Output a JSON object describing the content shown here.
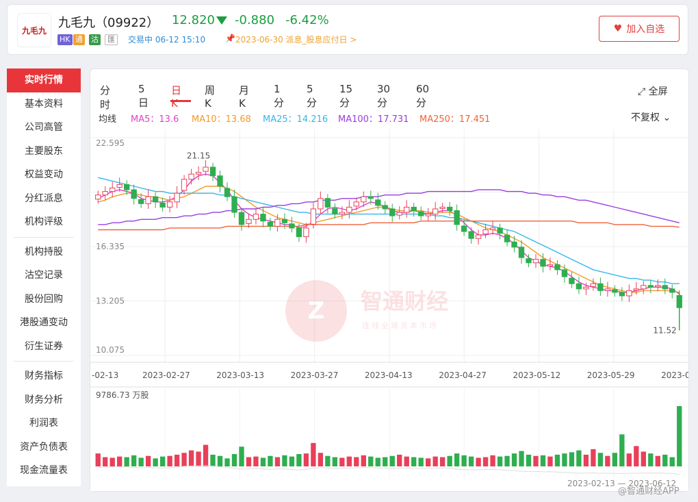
{
  "header": {
    "logo_text": "九毛九",
    "name": "九毛九（09922）",
    "price": "12.820",
    "change": "-0.880",
    "change_pct": "-6.42%",
    "tags": [
      "HK",
      "通",
      "沽",
      "匯"
    ],
    "trade_status": "交易中 06-12 15:10",
    "dividend_notice": "2023-06-30 派息_股息应付日 >",
    "favorite_label": "加入自选"
  },
  "sidebar": {
    "items": [
      "实时行情",
      "基本资料",
      "公司高管",
      "主要股东",
      "权益变动",
      "分红派息",
      "机构评级",
      "机构持股",
      "沽空记录",
      "股份回购",
      "港股通变动",
      "衍生证券",
      "财务指标",
      "财务分析",
      "利润表",
      "资产负债表",
      "现金流量表"
    ]
  },
  "chart": {
    "periods": [
      "分时",
      "5日",
      "日K",
      "周K",
      "月K",
      "1分",
      "5分",
      "15分",
      "30分",
      "60分"
    ],
    "active_period": "日K",
    "fullscreen_label": "全屏",
    "adjust_label": "不复权",
    "ma_label": "均线",
    "ma": [
      {
        "label": "MA5：13.6",
        "color": "#e040c8"
      },
      {
        "label": "MA10：13.68",
        "color": "#f39a2a"
      },
      {
        "label": "MA25：14.216",
        "color": "#35b6e8"
      },
      {
        "label": "MA100：17.731",
        "color": "#9a3de0"
      },
      {
        "label": "MA250：17.451",
        "color": "#f0623a"
      }
    ],
    "watermark": "智通财经",
    "watermark_sub": "连线全球资本市场",
    "volume_label": "9786.73 万股",
    "range_label": "2023-02-13 — 2023-06-12",
    "footer_brand": "@智通财经APP"
  },
  "chart_data": {
    "type": "candlestick",
    "y_ticks": [
      "22.595",
      "19.465",
      "16.335",
      "13.205",
      "10.075"
    ],
    "y_labels_shown": [
      "22.595",
      "16.335",
      "13.205",
      "10.075"
    ],
    "ylim": [
      10.075,
      22.595
    ],
    "x_labels": [
      "-02-13",
      "2023-02-27",
      "2023-03-13",
      "2023-03-27",
      "2023-04-13",
      "2023-04-27",
      "2023-05-12",
      "2023-05-29",
      "2023-0"
    ],
    "high_annotation": "21.15",
    "low_annotation": "11.52",
    "closes": [
      19.3,
      19.5,
      19.7,
      19.9,
      19.6,
      19.1,
      18.8,
      19.2,
      18.9,
      18.6,
      18.9,
      19.4,
      20.2,
      20.5,
      20.6,
      20.9,
      20.4,
      19.8,
      19.2,
      18.3,
      17.6,
      17.9,
      18.2,
      17.8,
      17.5,
      17.9,
      17.7,
      17.4,
      16.9,
      17.4,
      18.5,
      19.1,
      18.6,
      18.2,
      18.3,
      18.6,
      18.9,
      19.2,
      19.1,
      18.7,
      18.5,
      18.1,
      18.3,
      18.6,
      18.4,
      18.1,
      18.2,
      18.5,
      18.6,
      18.4,
      17.6,
      17.2,
      16.8,
      17.0,
      17.3,
      17.4,
      17.1,
      16.6,
      16.3,
      15.7,
      15.4,
      15.6,
      15.2,
      15.3,
      15.0,
      14.6,
      14.2,
      13.9,
      14.0,
      14.2,
      13.8,
      13.9,
      13.7,
      13.5,
      13.8,
      13.9,
      14.1,
      14.0,
      14.1,
      13.9,
      13.7,
      12.82
    ],
    "ma5": [
      19.1,
      19.3,
      19.5,
      19.6,
      19.5,
      19.4,
      19.1,
      19.0,
      18.9,
      18.9,
      19.0,
      19.2,
      19.6,
      20.1,
      20.4,
      20.5,
      20.4,
      20.0,
      19.6,
      19.0,
      18.5,
      18.2,
      18.0,
      17.9,
      17.8,
      17.7,
      17.6,
      17.6,
      17.4,
      17.5,
      17.8,
      18.2,
      18.5,
      18.6,
      18.5,
      18.4,
      18.5,
      18.7,
      18.9,
      18.8,
      18.6,
      18.4,
      18.3,
      18.3,
      18.4,
      18.3,
      18.2,
      18.3,
      18.4,
      18.4,
      18.1,
      17.7,
      17.3,
      17.0,
      17.0,
      17.1,
      17.0,
      16.8,
      16.5,
      16.1,
      15.7,
      15.5,
      15.3,
      15.2,
      15.1,
      14.9,
      14.6,
      14.3,
      14.1,
      14.0,
      13.9,
      13.8,
      13.8,
      13.7,
      13.7,
      13.8,
      13.9,
      14.0,
      14.0,
      14.0,
      13.9,
      13.6
    ],
    "ma10": [
      18.9,
      19.0,
      19.2,
      19.3,
      19.4,
      19.4,
      19.3,
      19.2,
      19.2,
      19.1,
      19.0,
      19.1,
      19.2,
      19.4,
      19.6,
      19.8,
      19.8,
      19.8,
      19.7,
      19.5,
      19.2,
      18.9,
      18.6,
      18.4,
      18.2,
      18.0,
      17.9,
      17.8,
      17.7,
      17.6,
      17.7,
      17.8,
      17.9,
      18.0,
      18.1,
      18.2,
      18.3,
      18.4,
      18.5,
      18.6,
      18.6,
      18.5,
      18.4,
      18.4,
      18.4,
      18.4,
      18.3,
      18.3,
      18.3,
      18.3,
      18.2,
      18.0,
      17.8,
      17.6,
      17.4,
      17.3,
      17.2,
      17.0,
      16.8,
      16.6,
      16.3,
      16.0,
      15.7,
      15.5,
      15.3,
      15.1,
      14.9,
      14.7,
      14.5,
      14.3,
      14.1,
      14.0,
      13.9,
      13.8,
      13.7,
      13.7,
      13.8,
      13.8,
      13.8,
      13.8,
      13.8,
      13.7
    ],
    "ma25": [
      20.3,
      20.2,
      20.1,
      20.0,
      19.9,
      19.8,
      19.7,
      19.6,
      19.5,
      19.5,
      19.4,
      19.4,
      19.4,
      19.4,
      19.4,
      19.4,
      19.4,
      19.3,
      19.3,
      19.2,
      19.1,
      19.0,
      18.9,
      18.8,
      18.7,
      18.6,
      18.5,
      18.4,
      18.3,
      18.3,
      18.2,
      18.2,
      18.2,
      18.2,
      18.2,
      18.2,
      18.2,
      18.2,
      18.2,
      18.2,
      18.2,
      18.2,
      18.2,
      18.2,
      18.2,
      18.2,
      18.2,
      18.1,
      18.1,
      18.0,
      18.0,
      17.9,
      17.8,
      17.7,
      17.6,
      17.5,
      17.4,
      17.3,
      17.2,
      17.0,
      16.8,
      16.6,
      16.4,
      16.2,
      16.0,
      15.8,
      15.6,
      15.4,
      15.2,
      15.0,
      14.9,
      14.8,
      14.7,
      14.6,
      14.5,
      14.5,
      14.4,
      14.4,
      14.3,
      14.3,
      14.2,
      14.2
    ],
    "ma100": [
      17.6,
      17.6,
      17.7,
      17.7,
      17.8,
      17.8,
      17.9,
      17.9,
      17.9,
      18.0,
      18.0,
      18.0,
      18.1,
      18.1,
      18.2,
      18.2,
      18.3,
      18.3,
      18.4,
      18.4,
      18.5,
      18.5,
      18.5,
      18.6,
      18.6,
      18.7,
      18.7,
      18.8,
      18.8,
      18.9,
      18.9,
      19.0,
      19.0,
      19.0,
      19.1,
      19.1,
      19.1,
      19.2,
      19.2,
      19.2,
      19.3,
      19.3,
      19.3,
      19.4,
      19.4,
      19.4,
      19.5,
      19.5,
      19.5,
      19.5,
      19.5,
      19.5,
      19.5,
      19.6,
      19.6,
      19.6,
      19.6,
      19.5,
      19.5,
      19.5,
      19.4,
      19.4,
      19.3,
      19.3,
      19.2,
      19.2,
      19.1,
      19.0,
      19.0,
      18.9,
      18.8,
      18.7,
      18.6,
      18.5,
      18.4,
      18.3,
      18.2,
      18.1,
      18.0,
      17.9,
      17.8,
      17.7
    ],
    "ma250": [
      17.3,
      17.3,
      17.3,
      17.3,
      17.3,
      17.3,
      17.3,
      17.3,
      17.3,
      17.3,
      17.4,
      17.4,
      17.4,
      17.4,
      17.4,
      17.4,
      17.4,
      17.4,
      17.5,
      17.5,
      17.5,
      17.5,
      17.5,
      17.5,
      17.5,
      17.5,
      17.5,
      17.5,
      17.5,
      17.6,
      17.6,
      17.6,
      17.6,
      17.6,
      17.6,
      17.6,
      17.6,
      17.6,
      17.7,
      17.7,
      17.7,
      17.7,
      17.7,
      17.7,
      17.7,
      17.8,
      17.8,
      17.8,
      17.8,
      17.8,
      17.8,
      17.8,
      17.8,
      17.8,
      17.8,
      17.8,
      17.8,
      17.8,
      17.8,
      17.8,
      17.8,
      17.8,
      17.8,
      17.8,
      17.8,
      17.8,
      17.8,
      17.7,
      17.7,
      17.7,
      17.7,
      17.7,
      17.6,
      17.6,
      17.6,
      17.6,
      17.6,
      17.5,
      17.5,
      17.5,
      17.5,
      17.45
    ],
    "volume_max": 9786.73,
    "volume": [
      2100,
      1500,
      1400,
      1600,
      1500,
      1800,
      1400,
      1700,
      1300,
      1600,
      1700,
      1900,
      2200,
      2600,
      2400,
      3500,
      1900,
      1700,
      1300,
      2000,
      3200,
      1500,
      1600,
      1400,
      1700,
      1500,
      1800,
      1600,
      2000,
      2100,
      3800,
      2200,
      1700,
      1500,
      1400,
      1600,
      1500,
      1800,
      1600,
      1400,
      1500,
      1700,
      1900,
      1600,
      1500,
      1400,
      1300,
      1600,
      1500,
      1700,
      2100,
      1800,
      1600,
      1400,
      1500,
      1800,
      1600,
      1700,
      2100,
      2500,
      1900,
      1700,
      1800,
      1600,
      1900,
      2100,
      2300,
      2600,
      1900,
      2800,
      2200,
      1700,
      2200,
      5200,
      2100,
      3300,
      2400,
      2100,
      1700,
      1900,
      1500,
      9786.73
    ]
  }
}
